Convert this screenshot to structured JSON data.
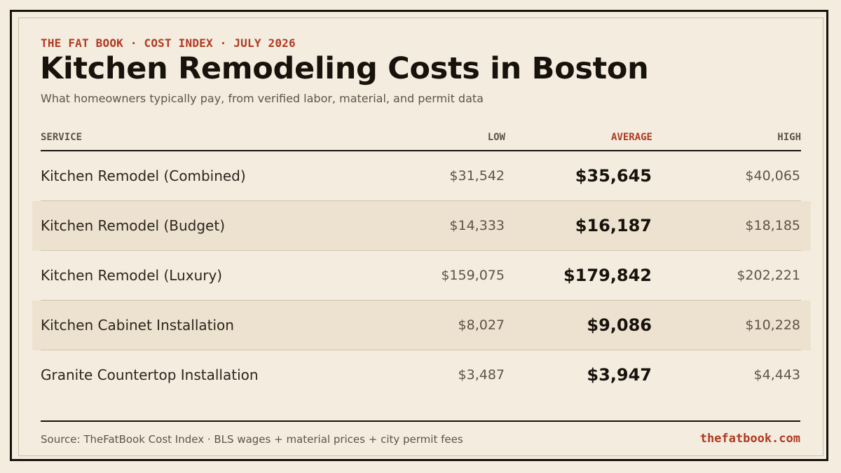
{
  "header": {
    "kicker": "THE FAT BOOK · COST INDEX · JULY 2026",
    "title": "Kitchen Remodeling Costs in Boston",
    "subtitle": "What homeowners typically pay, from verified labor, material, and permit data"
  },
  "table": {
    "columns": {
      "service": "SERVICE",
      "low": "LOW",
      "average": "AVERAGE",
      "high": "HIGH"
    },
    "rows": [
      {
        "service": "Kitchen Remodel (Combined)",
        "low": "$31,542",
        "average": "$35,645",
        "high": "$40,065"
      },
      {
        "service": "Kitchen Remodel (Budget)",
        "low": "$14,333",
        "average": "$16,187",
        "high": "$18,185"
      },
      {
        "service": "Kitchen Remodel (Luxury)",
        "low": "$159,075",
        "average": "$179,842",
        "high": "$202,221"
      },
      {
        "service": "Kitchen Cabinet Installation",
        "low": "$8,027",
        "average": "$9,086",
        "high": "$10,228"
      },
      {
        "service": "Granite Countertop Installation",
        "low": "$3,487",
        "average": "$3,947",
        "high": "$4,443"
      }
    ]
  },
  "footer": {
    "source": "Source: TheFatBook Cost Index · BLS wages + material prices + city permit fees",
    "site": "thefatbook.com"
  },
  "colors": {
    "background": "#f4ecdf",
    "accent": "#b03a22",
    "ink": "#17120c",
    "shaded_row": "#ece2cf"
  }
}
